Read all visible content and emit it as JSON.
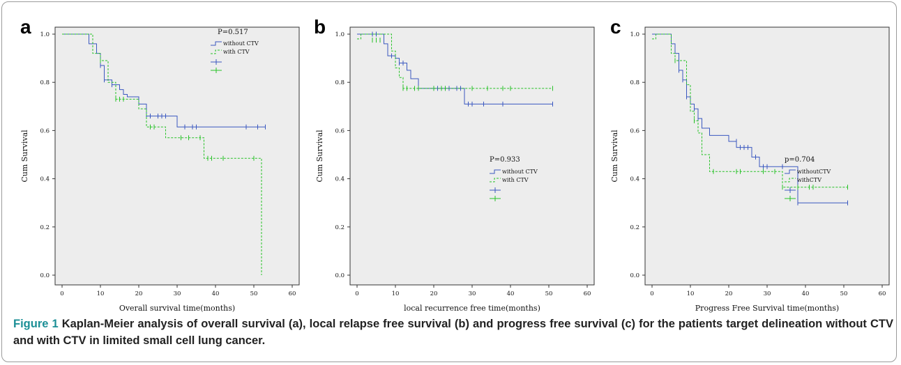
{
  "figure": {
    "label": "Figure 1",
    "caption": "Kaplan-Meier analysis of overall survival (a), local relapse free survival (b) and progress free survival (c) for the patients target delineation without CTV and with CTV in limited small cell lung cancer.",
    "colors": {
      "without_ctv": "#3a58c0",
      "with_ctv": "#27c227",
      "plot_bg": "#ededed",
      "caption_label": "#1c8f96"
    }
  },
  "chart_data": [
    {
      "type": "line",
      "panel_letter": "a",
      "xlabel": "Overall survival time(months)",
      "ylabel": "Cum Survival",
      "xlim": [
        0,
        60
      ],
      "ylim": [
        0,
        1.0
      ],
      "xticks": [
        0,
        10,
        20,
        30,
        40,
        50,
        60
      ],
      "yticks": [
        0.0,
        0.2,
        0.4,
        0.6,
        0.8,
        1.0
      ],
      "grid": false,
      "legend_position": "top-right",
      "p_value_text": "P=0.517",
      "legend": [
        "without CTV",
        "with CTV"
      ],
      "series": [
        {
          "name": "without CTV",
          "style": "solid",
          "color": "#3a58c0",
          "steps": [
            [
              0,
              1.0
            ],
            [
              6,
              1.0
            ],
            [
              7,
              0.96
            ],
            [
              9,
              0.92
            ],
            [
              10,
              0.87
            ],
            [
              11,
              0.81
            ],
            [
              13,
              0.79
            ],
            [
              15,
              0.77
            ],
            [
              16,
              0.75
            ],
            [
              17,
              0.74
            ],
            [
              20,
              0.71
            ],
            [
              22,
              0.66
            ],
            [
              30,
              0.615
            ],
            [
              53,
              0.615
            ]
          ],
          "censored": [
            [
              10,
              0.87
            ],
            [
              11,
              0.81
            ],
            [
              13,
              0.79
            ],
            [
              22,
              0.66
            ],
            [
              23,
              0.66
            ],
            [
              25,
              0.66
            ],
            [
              26,
              0.66
            ],
            [
              27,
              0.66
            ],
            [
              32,
              0.615
            ],
            [
              34,
              0.615
            ],
            [
              35,
              0.615
            ],
            [
              48,
              0.615
            ],
            [
              51,
              0.615
            ],
            [
              53,
              0.615
            ]
          ]
        },
        {
          "name": "with CTV",
          "style": "dashed",
          "color": "#27c227",
          "steps": [
            [
              0,
              1.0
            ],
            [
              7,
              1.0
            ],
            [
              8,
              0.92
            ],
            [
              10,
              0.89
            ],
            [
              12,
              0.8
            ],
            [
              14,
              0.73
            ],
            [
              20,
              0.69
            ],
            [
              22,
              0.615
            ],
            [
              27,
              0.57
            ],
            [
              37,
              0.485
            ],
            [
              52,
              0.485
            ],
            [
              52,
              0.0
            ]
          ],
          "censored": [
            [
              10,
              0.89
            ],
            [
              14,
              0.73
            ],
            [
              15,
              0.73
            ],
            [
              16,
              0.73
            ],
            [
              23,
              0.615
            ],
            [
              24,
              0.615
            ],
            [
              31,
              0.57
            ],
            [
              33,
              0.57
            ],
            [
              36,
              0.57
            ],
            [
              38,
              0.485
            ],
            [
              39,
              0.485
            ],
            [
              42,
              0.485
            ],
            [
              50,
              0.485
            ]
          ]
        }
      ]
    },
    {
      "type": "line",
      "panel_letter": "b",
      "xlabel": "local recurrence free time(months)",
      "ylabel": "Cum Survival",
      "xlim": [
        0,
        60
      ],
      "ylim": [
        0,
        1.0
      ],
      "xticks": [
        0,
        10,
        20,
        30,
        40,
        50,
        60
      ],
      "yticks": [
        0.0,
        0.2,
        0.4,
        0.6,
        0.8,
        1.0
      ],
      "grid": false,
      "legend_position": "center-right",
      "p_value_text": "P=0.933",
      "legend": [
        "without CTV",
        "with CTV"
      ],
      "series": [
        {
          "name": "without CTV",
          "style": "solid",
          "color": "#3a58c0",
          "steps": [
            [
              0,
              1.0
            ],
            [
              6,
              1.0
            ],
            [
              7,
              0.96
            ],
            [
              8,
              0.91
            ],
            [
              10,
              0.9
            ],
            [
              11,
              0.88
            ],
            [
              13,
              0.85
            ],
            [
              14,
              0.815
            ],
            [
              16,
              0.775
            ],
            [
              28,
              0.71
            ],
            [
              51,
              0.71
            ]
          ],
          "censored": [
            [
              4,
              1.0
            ],
            [
              5,
              1.0
            ],
            [
              9,
              0.91
            ],
            [
              11,
              0.88
            ],
            [
              12,
              0.88
            ],
            [
              20,
              0.775
            ],
            [
              21,
              0.775
            ],
            [
              22,
              0.775
            ],
            [
              23,
              0.775
            ],
            [
              24,
              0.775
            ],
            [
              26,
              0.775
            ],
            [
              27,
              0.775
            ],
            [
              29,
              0.71
            ],
            [
              30,
              0.71
            ],
            [
              33,
              0.71
            ],
            [
              38,
              0.71
            ],
            [
              51,
              0.71
            ]
          ]
        },
        {
          "name": "with CTV",
          "style": "dashed",
          "color": "#27c227",
          "steps": [
            [
              0,
              0.98
            ],
            [
              1,
              1.0
            ],
            [
              8,
              1.0
            ],
            [
              9,
              0.93
            ],
            [
              10,
              0.86
            ],
            [
              11,
              0.82
            ],
            [
              12,
              0.775
            ],
            [
              51,
              0.775
            ]
          ],
          "censored": [
            [
              4,
              0.975
            ],
            [
              5,
              0.975
            ],
            [
              6,
              0.975
            ],
            [
              12,
              0.775
            ],
            [
              13,
              0.775
            ],
            [
              15,
              0.775
            ],
            [
              16,
              0.775
            ],
            [
              20,
              0.775
            ],
            [
              22,
              0.775
            ],
            [
              23,
              0.775
            ],
            [
              30,
              0.775
            ],
            [
              34,
              0.775
            ],
            [
              38,
              0.775
            ],
            [
              40,
              0.775
            ],
            [
              51,
              0.775
            ]
          ]
        }
      ]
    },
    {
      "type": "line",
      "panel_letter": "c",
      "xlabel": "Progress Free Survival time(months)",
      "ylabel": "Cum Survival",
      "xlim": [
        0,
        60
      ],
      "ylim": [
        0,
        1.0
      ],
      "xticks": [
        0,
        10,
        20,
        30,
        40,
        50,
        60
      ],
      "yticks": [
        0.0,
        0.2,
        0.4,
        0.6,
        0.8,
        1.0
      ],
      "grid": false,
      "legend_position": "center-right",
      "p_value_text": "p=0.704",
      "legend": [
        "withoutCTV",
        "withCTV"
      ],
      "series": [
        {
          "name": "withoutCTV",
          "style": "solid",
          "color": "#3a58c0",
          "steps": [
            [
              0,
              1.0
            ],
            [
              4,
              1.0
            ],
            [
              5,
              0.96
            ],
            [
              6,
              0.92
            ],
            [
              7,
              0.85
            ],
            [
              8,
              0.81
            ],
            [
              9,
              0.74
            ],
            [
              10,
              0.71
            ],
            [
              11,
              0.69
            ],
            [
              12,
              0.65
            ],
            [
              13,
              0.61
            ],
            [
              15,
              0.58
            ],
            [
              20,
              0.555
            ],
            [
              22,
              0.53
            ],
            [
              26,
              0.49
            ],
            [
              28,
              0.45
            ],
            [
              35,
              0.45
            ],
            [
              38,
              0.3
            ],
            [
              51,
              0.3
            ]
          ],
          "censored": [
            [
              7,
              0.85
            ],
            [
              8,
              0.81
            ],
            [
              9,
              0.74
            ],
            [
              11,
              0.69
            ],
            [
              12,
              0.65
            ],
            [
              22,
              0.555
            ],
            [
              23,
              0.53
            ],
            [
              24,
              0.53
            ],
            [
              25,
              0.53
            ],
            [
              27,
              0.49
            ],
            [
              29,
              0.45
            ],
            [
              30,
              0.45
            ],
            [
              34,
              0.45
            ],
            [
              38,
              0.3
            ],
            [
              51,
              0.3
            ]
          ]
        },
        {
          "name": "withCTV",
          "style": "dashed",
          "color": "#27c227",
          "steps": [
            [
              0,
              0.98
            ],
            [
              1,
              1.0
            ],
            [
              4,
              1.0
            ],
            [
              5,
              0.92
            ],
            [
              6,
              0.89
            ],
            [
              9,
              0.79
            ],
            [
              10,
              0.68
            ],
            [
              11,
              0.64
            ],
            [
              12,
              0.59
            ],
            [
              13,
              0.5
            ],
            [
              15,
              0.43
            ],
            [
              34,
              0.365
            ],
            [
              51,
              0.365
            ]
          ],
          "censored": [
            [
              6,
              0.89
            ],
            [
              11,
              0.64
            ],
            [
              16,
              0.43
            ],
            [
              22,
              0.43
            ],
            [
              23,
              0.43
            ],
            [
              29,
              0.43
            ],
            [
              32,
              0.43
            ],
            [
              34,
              0.365
            ],
            [
              38,
              0.365
            ],
            [
              41,
              0.365
            ],
            [
              42,
              0.365
            ],
            [
              51,
              0.365
            ]
          ]
        }
      ]
    }
  ]
}
